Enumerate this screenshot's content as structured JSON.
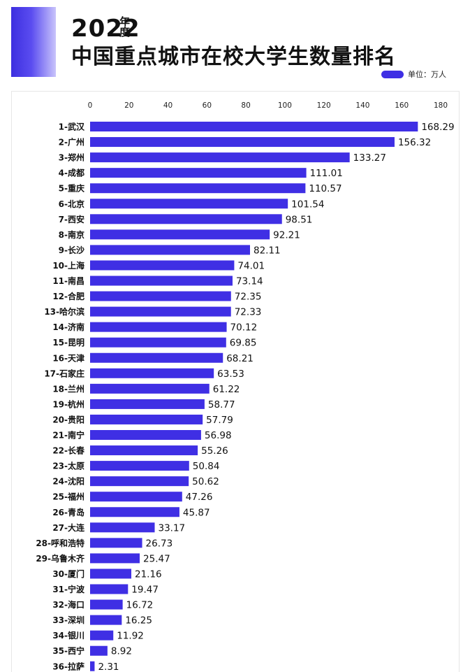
{
  "header": {
    "year": "2022",
    "year_suffix": "年度",
    "title": "中国重点城市在校大学生数量排名",
    "unit_label": "单位：万人"
  },
  "colors": {
    "bar": "#3f2fe4",
    "accent": "#4a3cf0"
  },
  "chart_data": {
    "type": "bar",
    "orientation": "horizontal",
    "title": "中国重点城市在校大学生数量排名",
    "xlim": [
      0,
      180
    ],
    "x_ticks": [
      0,
      20,
      40,
      60,
      80,
      100,
      120,
      140,
      160,
      180
    ],
    "tick_labels": [
      "0",
      "20",
      "40",
      "60",
      "80",
      "100",
      "120",
      "140",
      "160",
      "180"
    ],
    "categories": [
      "1-武汉",
      "2-广州",
      "3-郑州",
      "4-成都",
      "5-重庆",
      "6-北京",
      "7-西安",
      "8-南京",
      "9-长沙",
      "10-上海",
      "11-南昌",
      "12-合肥",
      "13-哈尔滨",
      "14-济南",
      "15-昆明",
      "16-天津",
      "17-石家庄",
      "18-兰州",
      "19-杭州",
      "20-贵阳",
      "21-南宁",
      "22-长春",
      "23-太原",
      "24-沈阳",
      "25-福州",
      "26-青岛",
      "27-大连",
      "28-呼和浩特",
      "29-乌鲁木齐",
      "30-厦门",
      "31-宁波",
      "32-海口",
      "33-深圳",
      "34-银川",
      "35-西宁",
      "36-拉萨"
    ],
    "values": [
      168.29,
      156.32,
      133.27,
      111.01,
      110.57,
      101.54,
      98.51,
      92.21,
      82.11,
      74.01,
      73.14,
      72.35,
      72.33,
      70.12,
      69.85,
      68.21,
      63.53,
      61.22,
      58.77,
      57.79,
      56.98,
      55.26,
      50.84,
      50.62,
      47.26,
      45.87,
      33.17,
      26.73,
      25.47,
      21.16,
      19.47,
      16.72,
      16.25,
      11.92,
      8.92,
      2.31
    ],
    "value_labels": [
      "168.29",
      "156.32",
      "133.27",
      "111.01",
      "110.57",
      "101.54",
      "98.51",
      "92.21",
      "82.11",
      "74.01",
      "73.14",
      "72.35",
      "72.33",
      "70.12",
      "69.85",
      "68.21",
      "63.53",
      "61.22",
      "58.77",
      "57.79",
      "56.98",
      "55.26",
      "50.84",
      "50.62",
      "47.26",
      "45.87",
      "33.17",
      "26.73",
      "25.47",
      "21.16",
      "19.47",
      "16.72",
      "16.25",
      "11.92",
      "8.92",
      "2.31"
    ],
    "grid": false,
    "legend": "none"
  }
}
